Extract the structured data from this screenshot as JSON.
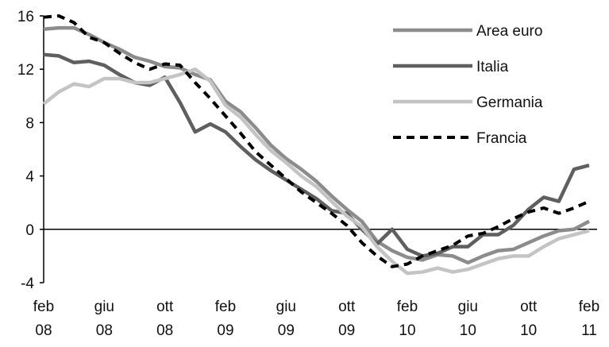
{
  "chart_data": {
    "type": "line",
    "categories": [
      "feb 08",
      null,
      null,
      null,
      "giu 08",
      null,
      null,
      null,
      "ott 08",
      null,
      null,
      null,
      "feb 09",
      null,
      null,
      null,
      "giu 09",
      null,
      null,
      null,
      "ott 09",
      null,
      null,
      null,
      "feb 10",
      null,
      null,
      null,
      "giu 10",
      null,
      null,
      null,
      "ott 10",
      null,
      null,
      null,
      "feb 11"
    ],
    "series": [
      {
        "name": "Area euro",
        "color": "#8c8c8c",
        "values": [
          15.0,
          15.1,
          15.1,
          14.6,
          14.0,
          13.5,
          12.9,
          12.6,
          12.2,
          12.1,
          11.6,
          11.2,
          9.6,
          8.8,
          7.6,
          6.3,
          5.3,
          4.5,
          3.6,
          2.5,
          1.5,
          0.6,
          -0.9,
          -1.6,
          -2.1,
          -2.3,
          -1.9,
          -2.0,
          -2.5,
          -2.0,
          -1.6,
          -1.5,
          -1.0,
          -0.5,
          -0.1,
          0.0,
          0.6
        ]
      },
      {
        "name": "Italia",
        "color": "#5f5f5f",
        "values": [
          13.1,
          13.0,
          12.5,
          12.6,
          12.3,
          11.6,
          11.0,
          10.8,
          11.4,
          9.5,
          7.3,
          7.9,
          7.3,
          6.2,
          5.2,
          4.4,
          3.7,
          3.0,
          2.3,
          1.4,
          1.2,
          0.0,
          -1.1,
          0.0,
          -1.5,
          -2.0,
          -1.8,
          -1.3,
          -1.3,
          -0.4,
          -0.4,
          0.3,
          1.5,
          2.4,
          2.1,
          4.5,
          4.8
        ]
      },
      {
        "name": "Germania",
        "color": "#c4c4c4",
        "values": [
          9.4,
          10.3,
          10.9,
          10.7,
          11.3,
          11.3,
          11.0,
          11.0,
          11.3,
          11.6,
          12.0,
          11.1,
          9.3,
          8.4,
          7.1,
          5.9,
          5.0,
          4.0,
          3.2,
          2.1,
          1.0,
          0.2,
          -1.3,
          -2.4,
          -3.3,
          -3.2,
          -2.9,
          -3.2,
          -3.0,
          -2.6,
          -2.2,
          -2.0,
          -2.0,
          -1.3,
          -0.7,
          -0.4,
          -0.1
        ]
      },
      {
        "name": "Francia",
        "color": "#000000",
        "dashed": true,
        "values": [
          15.9,
          16.0,
          15.5,
          14.4,
          14.0,
          13.2,
          12.5,
          12.0,
          12.4,
          12.3,
          11.0,
          9.8,
          8.5,
          7.2,
          5.8,
          4.8,
          3.8,
          2.8,
          2.0,
          1.2,
          0.3,
          -1.0,
          -2.0,
          -2.8,
          -2.6,
          -2.0,
          -1.6,
          -1.2,
          -0.5,
          -0.3,
          0.2,
          0.8,
          1.3,
          1.6,
          1.2,
          1.6,
          2.1
        ]
      }
    ],
    "ylim": [
      -4,
      16
    ],
    "yticks": [
      -4,
      0,
      4,
      8,
      12,
      16
    ],
    "grid": false,
    "legend": "top-right"
  }
}
